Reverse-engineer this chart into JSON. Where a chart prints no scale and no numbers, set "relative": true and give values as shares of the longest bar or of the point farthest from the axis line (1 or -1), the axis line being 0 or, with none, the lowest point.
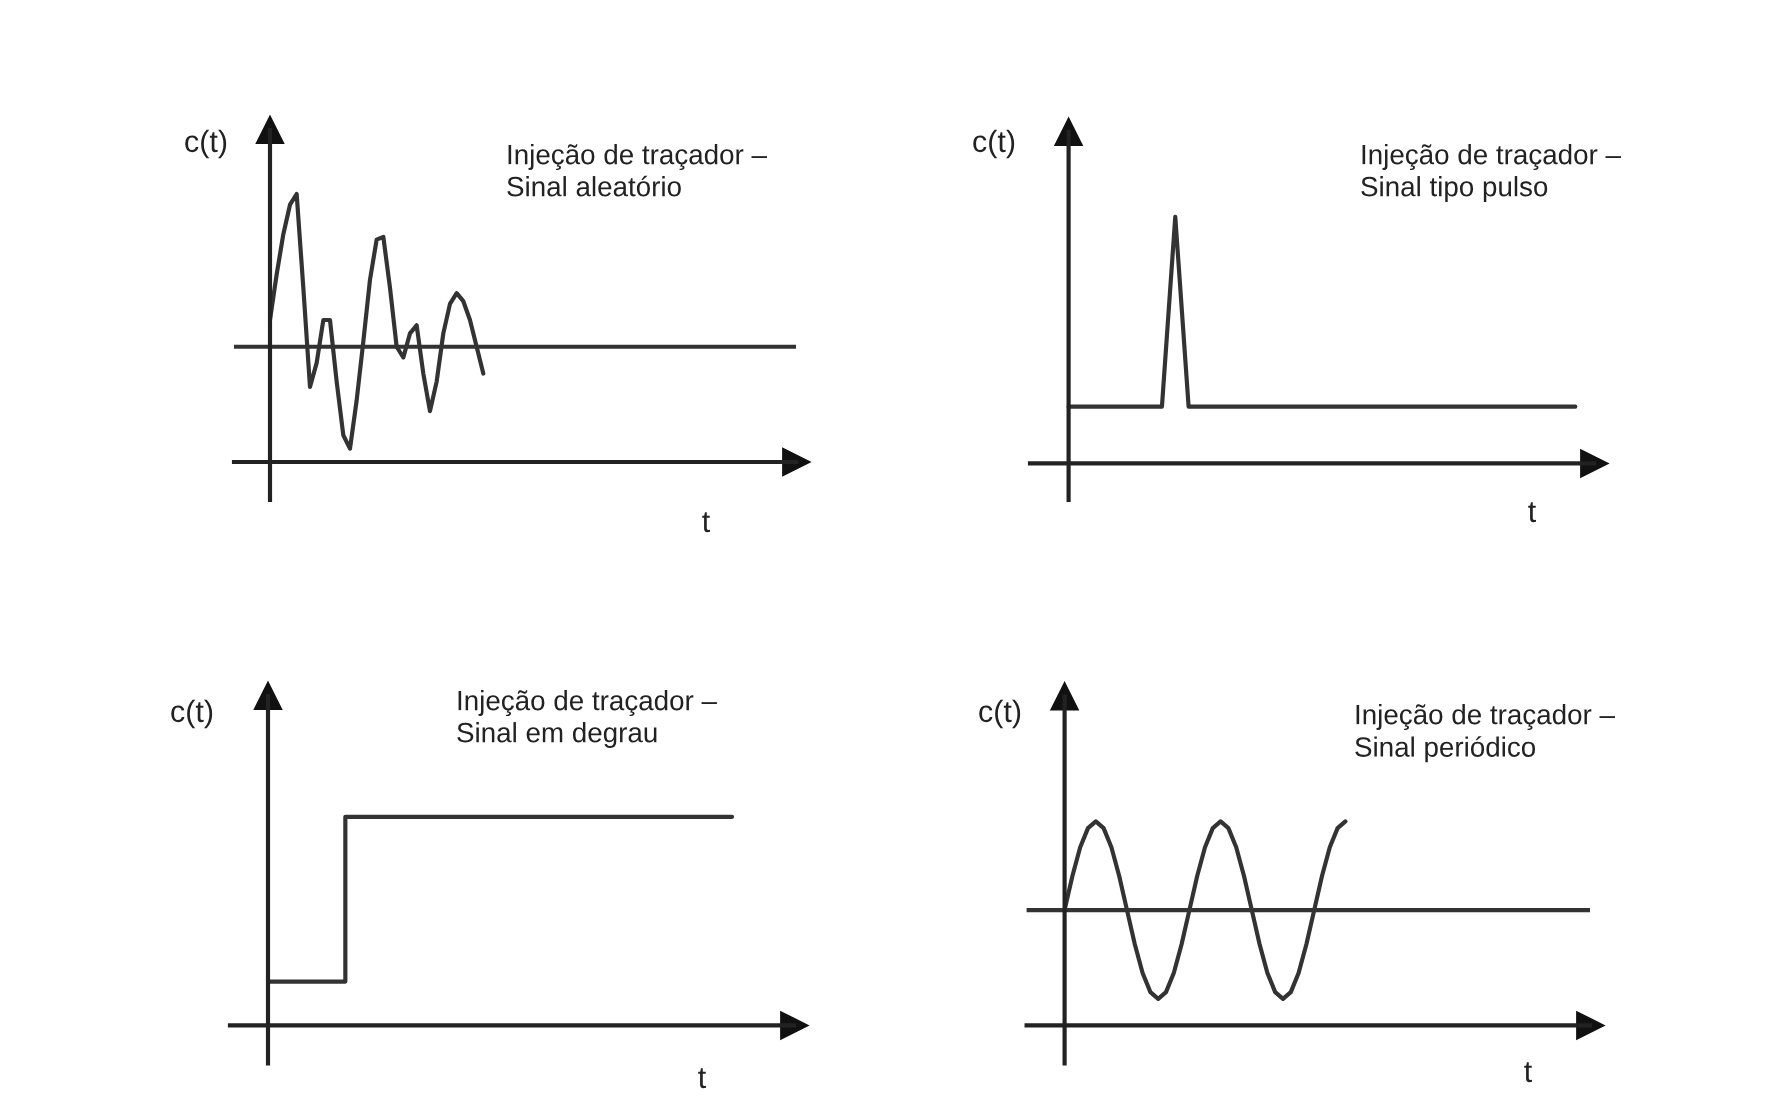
{
  "chart_data": [
    {
      "type": "line",
      "title": "Injeção de traçador –\nSinal aleatório",
      "xlabel": "t",
      "ylabel": "c(t)",
      "relative": true,
      "categories": [
        null,
        null,
        null,
        null,
        null,
        null,
        null,
        null,
        null,
        null,
        null,
        null,
        null,
        null,
        null,
        null,
        null,
        null,
        null,
        null,
        null,
        null,
        null,
        null,
        null,
        null,
        null,
        null,
        null,
        null,
        null,
        null,
        null,
        null,
        null,
        null,
        null,
        null,
        null,
        null,
        null,
        null,
        null,
        null,
        null,
        null,
        null,
        null,
        null,
        null,
        null,
        null,
        null,
        null,
        null,
        null,
        null,
        null,
        null,
        null,
        null,
        null,
        null,
        null,
        null,
        null,
        null,
        null,
        null,
        null,
        null,
        null,
        null,
        null,
        null,
        null,
        null,
        null,
        null
      ],
      "series": [
        {
          "color": "#333333",
          "values": [
            0.53,
            0.7,
            0.85,
            0.96,
            1.0,
            0.65,
            0.28,
            0.37,
            0.53,
            0.53,
            0.3,
            0.1,
            0.05,
            0.23,
            0.45,
            0.68,
            0.83,
            0.84,
            0.65,
            0.43,
            0.39,
            0.48,
            0.51,
            0.33,
            0.19,
            0.3,
            0.48,
            0.59,
            0.63,
            0.6,
            0.53,
            0.43,
            0.33,
            null,
            null,
            null,
            null,
            null,
            null,
            null,
            null,
            null,
            null,
            null,
            null,
            null,
            null,
            null,
            null,
            null,
            null,
            null,
            null,
            null,
            null,
            null,
            null,
            null,
            null,
            null,
            null,
            null,
            null,
            null,
            null,
            null,
            null,
            null,
            null,
            null,
            null,
            null,
            null,
            null,
            null,
            null,
            null,
            null,
            null
          ]
        }
      ],
      "ref_lines": [
        {
          "axis": "y",
          "value": 0.43,
          "color": "#333333"
        }
      ]
    },
    {
      "type": "line",
      "title": "Injeção de traçador –\nSinal tipo pulso",
      "xlabel": "t",
      "ylabel": "c(t)",
      "relative": true,
      "categories": [
        null,
        null,
        null,
        null,
        null,
        null,
        null,
        null,
        null,
        null,
        null,
        null,
        null,
        null,
        null,
        null,
        null,
        null,
        null,
        null,
        null,
        null,
        null,
        null,
        null,
        null,
        null,
        null,
        null,
        null,
        null,
        null,
        null,
        null,
        null,
        null,
        null,
        null,
        null
      ],
      "series": [
        {
          "color": "#333333",
          "values": [
            0.23,
            0.23,
            0.23,
            0.23,
            0.23,
            0.23,
            0.23,
            0.23,
            1.0,
            0.23,
            0.23,
            0.23,
            0.23,
            0.23,
            0.23,
            0.23,
            0.23,
            0.23,
            0.23,
            0.23,
            0.23,
            0.23,
            0.23,
            0.23,
            0.23,
            0.23,
            0.23,
            0.23,
            0.23,
            0.23,
            0.23,
            0.23,
            0.23,
            0.23,
            0.23,
            0.23,
            0.23,
            0.23,
            0.23
          ]
        }
      ]
    },
    {
      "type": "step",
      "title": "Injeção de traçador –\nSinal em degrau",
      "xlabel": "t",
      "ylabel": "c(t)",
      "relative": true,
      "categories": [
        null,
        null,
        null,
        null,
        null,
        null,
        null
      ],
      "series": [
        {
          "color": "#333333",
          "values": [
            0.21,
            1.0,
            1.0,
            1.0,
            1.0,
            1.0,
            1.0
          ]
        }
      ]
    },
    {
      "type": "line",
      "title": "Injeção de traçador –\nSinal periódico",
      "xlabel": "t",
      "ylabel": "c(t)",
      "relative": true,
      "categories": [
        null,
        null,
        null,
        null,
        null,
        null,
        null,
        null,
        null,
        null,
        null,
        null,
        null,
        null,
        null,
        null,
        null,
        null,
        null,
        null,
        null,
        null,
        null,
        null,
        null,
        null,
        null,
        null,
        null,
        null,
        null,
        null,
        null,
        null,
        null,
        null,
        null,
        null,
        null,
        null,
        null,
        null,
        null,
        null,
        null,
        null,
        null,
        null,
        null,
        null,
        null,
        null,
        null,
        null,
        null,
        null,
        null,
        null,
        null,
        null,
        null,
        null,
        null,
        null,
        null,
        null
      ],
      "series": [
        {
          "color": "#333333",
          "values": [
            0.565,
            0.732,
            0.873,
            0.967,
            1.0,
            0.967,
            0.873,
            0.732,
            0.565,
            0.398,
            0.257,
            0.163,
            0.13,
            0.163,
            0.257,
            0.398,
            0.565,
            0.732,
            0.873,
            0.967,
            1.0,
            0.967,
            0.873,
            0.732,
            0.565,
            0.398,
            0.257,
            0.163,
            0.13,
            0.163,
            0.257,
            0.398,
            0.565,
            0.732,
            0.873,
            0.967,
            1.0,
            null,
            null,
            null,
            null,
            null,
            null,
            null,
            null,
            null,
            null,
            null,
            null,
            null,
            null,
            null,
            null,
            null,
            null,
            null,
            null,
            null,
            null,
            null,
            null,
            null,
            null,
            null,
            null,
            null
          ]
        }
      ],
      "ref_lines": [
        {
          "axis": "y",
          "value": 0.565,
          "color": "#333333"
        }
      ]
    }
  ]
}
